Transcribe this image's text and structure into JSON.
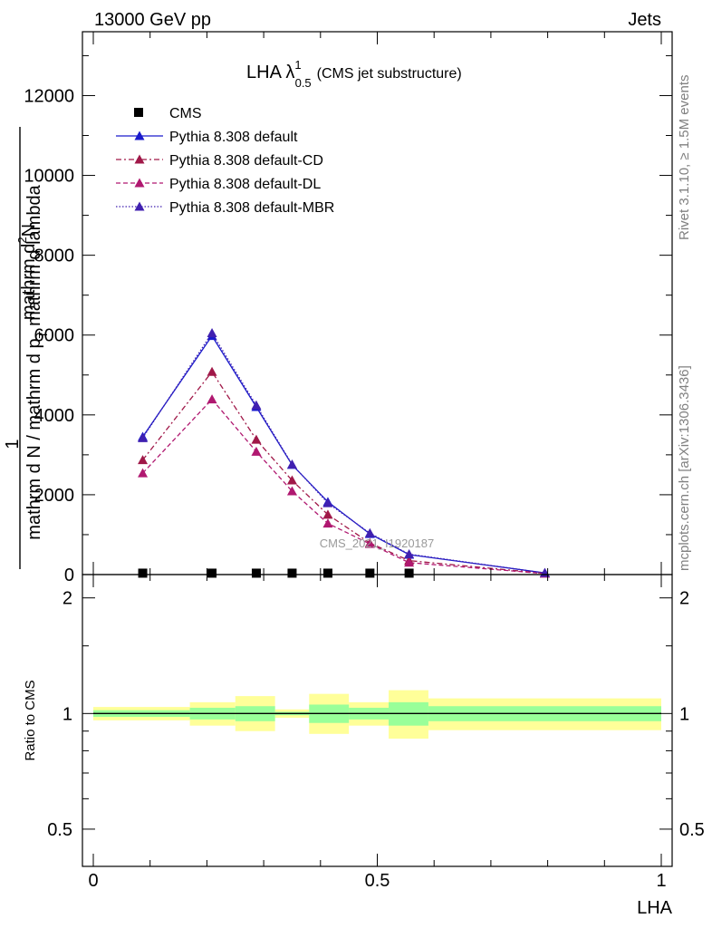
{
  "header": {
    "left": "13000 GeV pp",
    "right": "Jets"
  },
  "side_text": {
    "rivet": "Rivet 3.1.10, ≥ 1.5M events",
    "mcplots": "mcplots.cern.ch [arXiv:1306.3436]"
  },
  "chart_data": [
    {
      "type": "line",
      "panel": "main",
      "title_main": "LHA λ",
      "title_sup": "1",
      "title_sub": "0.5",
      "title_note": "(CMS jet substructure)",
      "watermark": "CMS_2021_I1920187",
      "ylabel_top": "1",
      "ylabel_num": "mathrm d",
      "ylabel_num_sup": "2",
      "ylabel_num_end": "N",
      "ylabel_den": "mathrm d N / mathrm d p",
      "ylabel_den_sub": "T",
      "ylabel_den_end": " mathrm d lambda",
      "ylim": [
        0,
        13600
      ],
      "xlim": [
        0,
        1
      ],
      "yticks": [
        0,
        2000,
        4000,
        6000,
        8000,
        10000,
        12000
      ],
      "ytick_labels": [
        "0",
        "2000",
        "4000",
        "6000",
        "8000",
        "10000",
        "12000"
      ],
      "x": [
        0.087,
        0.209,
        0.287,
        0.35,
        0.413,
        0.487,
        0.556,
        0.795
      ],
      "series": [
        {
          "name": "CMS",
          "marker": "square",
          "color": "#000000",
          "values": [
            35,
            35,
            35,
            35,
            35,
            35,
            35,
            0
          ]
        },
        {
          "name": "Pythia 8.308 default",
          "marker": "triangle",
          "style": "solid",
          "color": "#1a1acc",
          "values": [
            3450,
            5980,
            4200,
            2750,
            1820,
            1020,
            500,
            40
          ]
        },
        {
          "name": "Pythia 8.308 default-CD",
          "marker": "triangle",
          "style": "dashdot",
          "color": "#a01848",
          "values": [
            2870,
            5080,
            3380,
            2360,
            1500,
            790,
            350,
            30
          ]
        },
        {
          "name": "Pythia 8.308 default-DL",
          "marker": "triangle",
          "style": "dashed",
          "color": "#b01870",
          "values": [
            2540,
            4390,
            3080,
            2090,
            1280,
            770,
            300,
            25
          ]
        },
        {
          "name": "Pythia 8.308 default-MBR",
          "marker": "triangle",
          "style": "dotted",
          "color": "#4020b0",
          "values": [
            3420,
            6050,
            4240,
            2760,
            1790,
            1040,
            510,
            42
          ]
        }
      ]
    },
    {
      "type": "area",
      "panel": "ratio",
      "ylabel": "Ratio to CMS",
      "xlabel": "LHA",
      "yscale": "log",
      "ylim": [
        0.4,
        2.3
      ],
      "yticks": [
        0.5,
        1,
        2
      ],
      "ytick_labels": [
        "0.5",
        "1",
        "2"
      ],
      "xticks": [
        0,
        0.5,
        1
      ],
      "xtick_labels": [
        "0",
        "0.5",
        "1"
      ],
      "bins": [
        {
          "x0": 0.0,
          "x1": 0.17,
          "yellow": [
            0.96,
            1.04
          ],
          "green": [
            0.98,
            1.02
          ]
        },
        {
          "x0": 0.17,
          "x1": 0.25,
          "yellow": [
            0.93,
            1.07
          ],
          "green": [
            0.965,
            1.035
          ]
        },
        {
          "x0": 0.25,
          "x1": 0.32,
          "yellow": [
            0.9,
            1.11
          ],
          "green": [
            0.955,
            1.045
          ]
        },
        {
          "x0": 0.32,
          "x1": 0.38,
          "yellow": [
            0.975,
            1.025
          ],
          "green": [
            0.99,
            1.01
          ]
        },
        {
          "x0": 0.38,
          "x1": 0.45,
          "yellow": [
            0.885,
            1.125
          ],
          "green": [
            0.945,
            1.055
          ]
        },
        {
          "x0": 0.45,
          "x1": 0.52,
          "yellow": [
            0.93,
            1.07
          ],
          "green": [
            0.965,
            1.035
          ]
        },
        {
          "x0": 0.52,
          "x1": 0.59,
          "yellow": [
            0.86,
            1.15
          ],
          "green": [
            0.93,
            1.07
          ]
        },
        {
          "x0": 0.59,
          "x1": 1.0,
          "yellow": [
            0.905,
            1.095
          ],
          "green": [
            0.955,
            1.045
          ]
        }
      ]
    }
  ]
}
